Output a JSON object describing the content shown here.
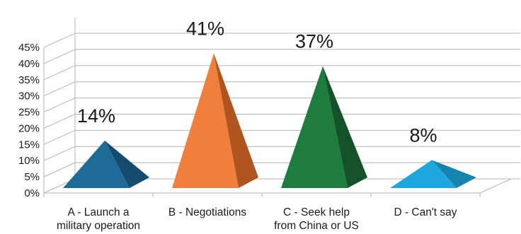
{
  "chart_data": {
    "type": "bar",
    "style": "3d-pyramid",
    "categories": [
      [
        "A - Launch a",
        "military operation"
      ],
      [
        "B - Negotiations"
      ],
      [
        "C - Seek help",
        "from China or US"
      ],
      [
        "D - Can't say"
      ]
    ],
    "values": [
      14,
      41,
      37,
      8
    ],
    "data_labels": [
      "14%",
      "41%",
      "37%",
      "8%"
    ],
    "y_ticks": [
      "0%",
      "5%",
      "10%",
      "15%",
      "20%",
      "25%",
      "30%",
      "35%",
      "40%",
      "45%"
    ],
    "ylim": [
      0,
      45
    ],
    "grid": true,
    "title": "",
    "xlabel": "",
    "ylabel": "",
    "colors": [
      {
        "left": "#1f6b98",
        "right": "#154b6e"
      },
      {
        "left": "#f07f3c",
        "right": "#b0551f"
      },
      {
        "left": "#1e7d3e",
        "right": "#15522a"
      },
      {
        "left": "#1ea7de",
        "right": "#1784b0"
      }
    ]
  }
}
